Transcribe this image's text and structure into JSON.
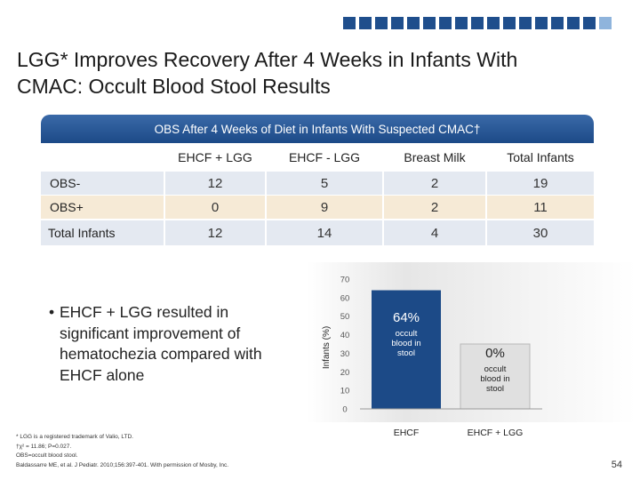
{
  "title": {
    "line1": "LGG* Improves Recovery After 4 Weeks in Infants With",
    "line2": "CMAC: Occult Blood Stool Results"
  },
  "table": {
    "header": "OBS After 4 Weeks of Diet in Infants With Suspected CMAC†",
    "columns": [
      "EHCF + LGG",
      "EHCF - LGG",
      "Breast Milk",
      "Total Infants"
    ],
    "rows": [
      {
        "label": "OBS-",
        "values": [
          "12",
          "5",
          "2",
          "19"
        ]
      },
      {
        "label": "OBS+",
        "values": [
          "0",
          "9",
          "2",
          "11"
        ]
      },
      {
        "label": "Total Infants",
        "values": [
          "12",
          "14",
          "4",
          "30"
        ]
      }
    ]
  },
  "bullet": {
    "symbol": "•",
    "text": "EHCF + LGG resulted in significant improvement of hematochezia compared with EHCF alone"
  },
  "chart_data": {
    "type": "bar",
    "categories": [
      "EHCF",
      "EHCF + LGG"
    ],
    "values": [
      64,
      0
    ],
    "value_labels": [
      "64%",
      "0%"
    ],
    "sublabels": [
      "occult blood in stool",
      "occult blood in stool"
    ],
    "ylabel": "Infants (%)",
    "yticks": [
      0,
      10,
      20,
      30,
      40,
      50,
      60,
      70
    ],
    "ylim": [
      0,
      70
    ],
    "colors": {
      "ehcf": "#1c4a87",
      "ehcf_lgg": "#e0e0e0",
      "ehcf_lgg_border": "#b8b8b8"
    }
  },
  "footnotes": {
    "line1": "* LGG is a registered trademark of Valio, LTD.",
    "line2": "†χ² = 11.86; P=0.027.",
    "line3": "OBS=occult blood stool.",
    "line4": "Baldassarre ME, et al. J Pediatr. 2010;156:397-401. With permission of Mosby, Inc."
  },
  "page_number": "54"
}
